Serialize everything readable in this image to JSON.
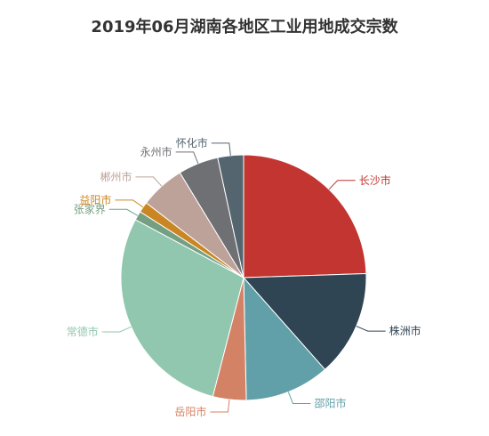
{
  "chart_data": {
    "type": "pie",
    "title": "2019年06月湖南各地区工业用地成交宗数",
    "slices": [
      {
        "name": "长沙市",
        "value": 24.5,
        "color": "#c23531"
      },
      {
        "name": "株洲市",
        "value": 14.0,
        "color": "#2f4554"
      },
      {
        "name": "邵阳市",
        "value": 11.2,
        "color": "#61a0a8"
      },
      {
        "name": "岳阳市",
        "value": 4.4,
        "color": "#d48265"
      },
      {
        "name": "常德市",
        "value": 28.8,
        "color": "#91c7ae"
      },
      {
        "name": "张家界",
        "value": 1.2,
        "color": "#749f83"
      },
      {
        "name": "益阳市",
        "value": 1.4,
        "color": "#ca8622"
      },
      {
        "name": "郴州市",
        "value": 5.9,
        "color": "#bda29a"
      },
      {
        "name": "永州市",
        "value": 5.3,
        "color": "#6e7074"
      },
      {
        "name": "怀化市",
        "value": 3.4,
        "color": "#546570"
      }
    ]
  }
}
